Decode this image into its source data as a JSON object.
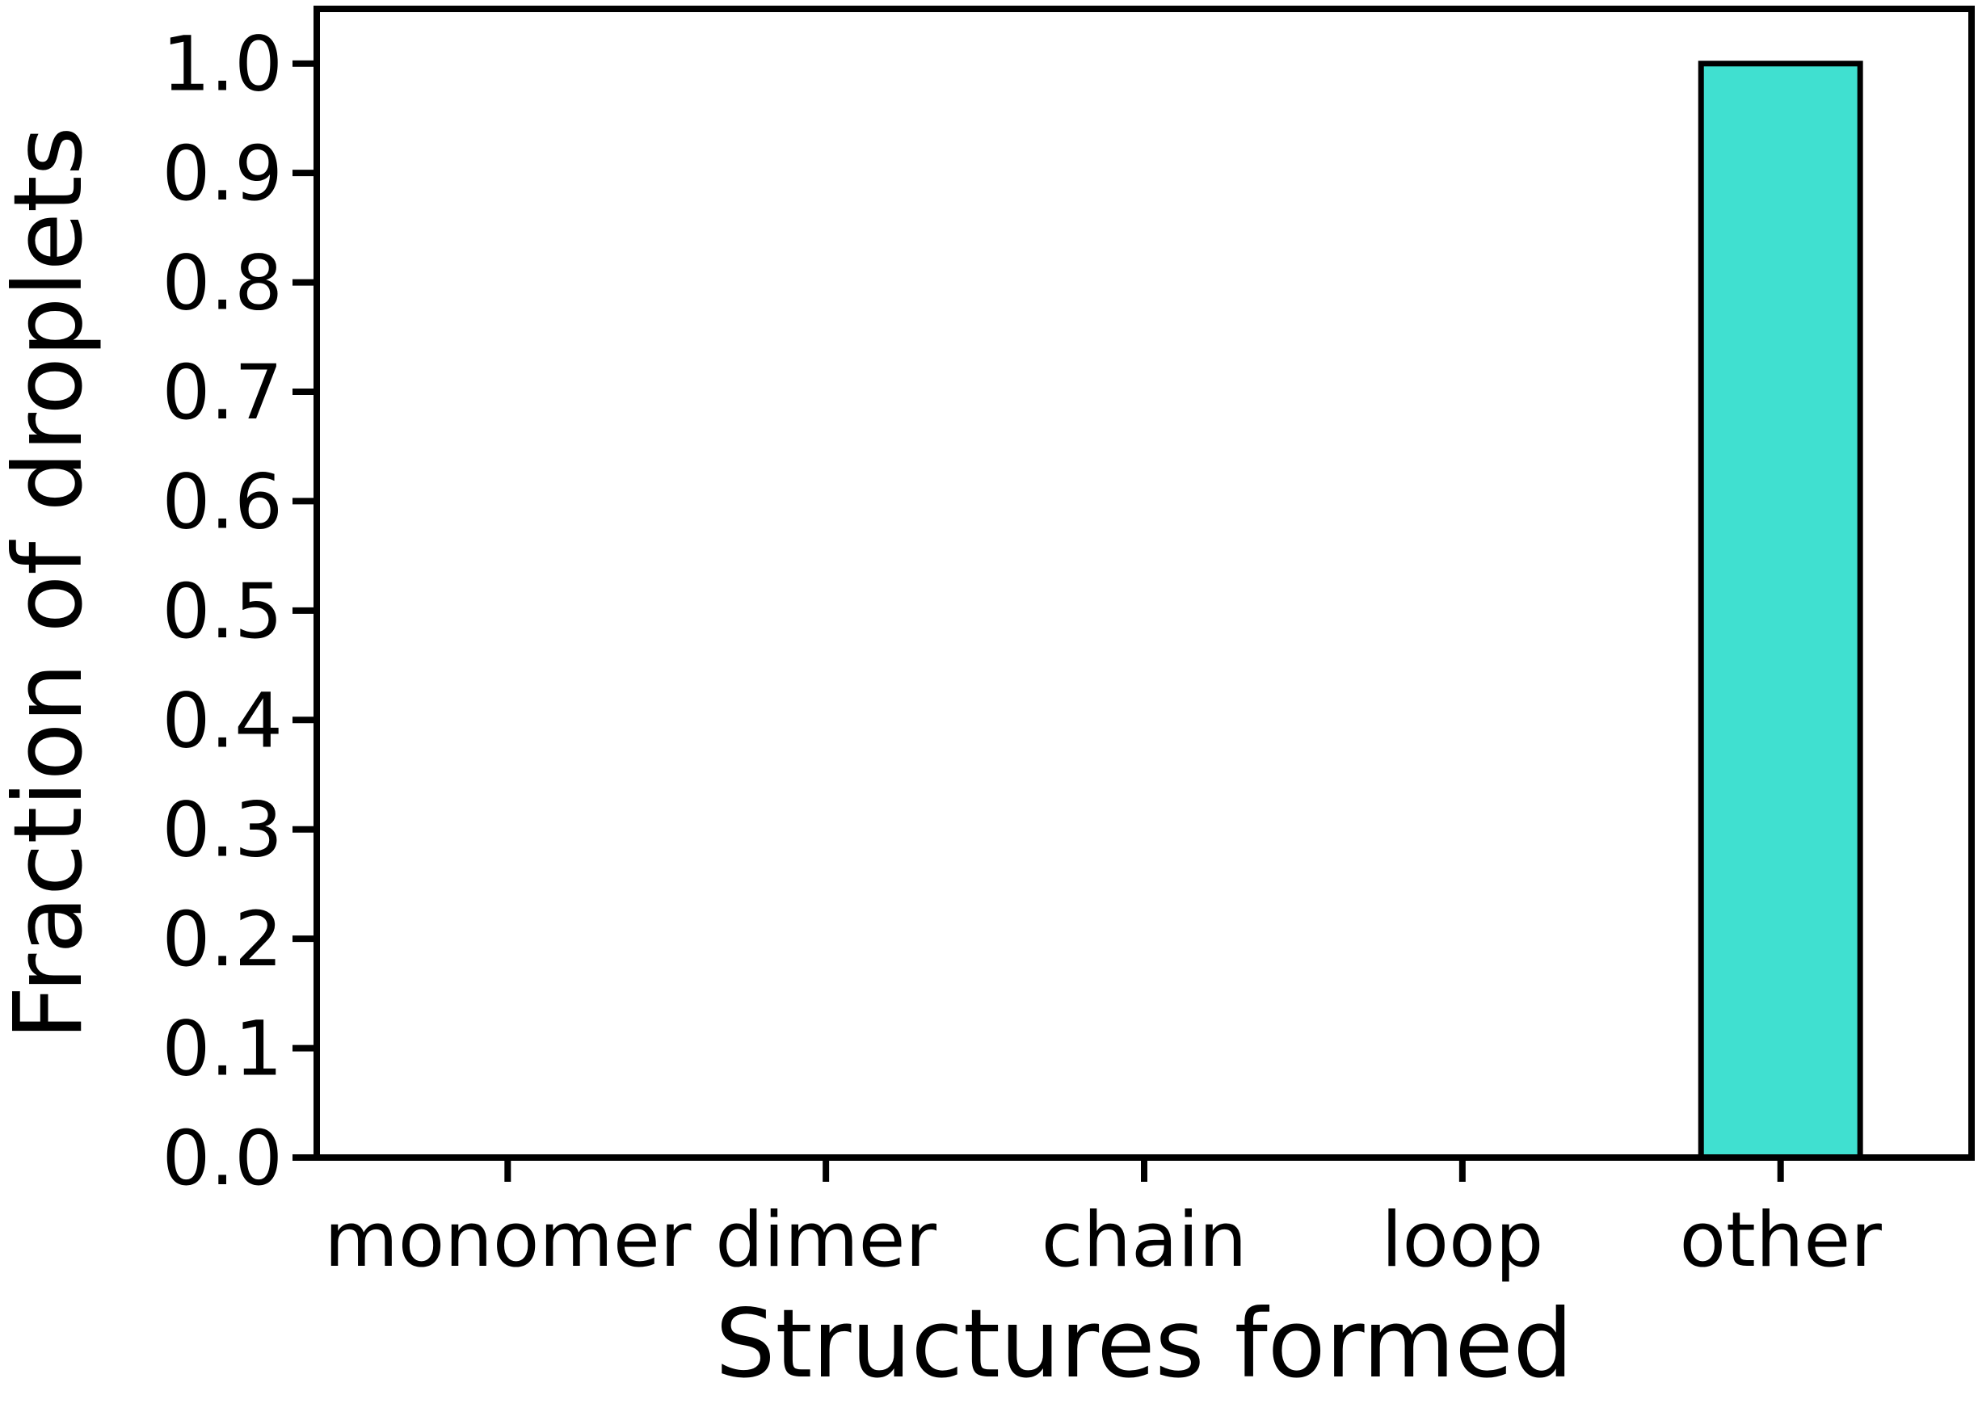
{
  "chart_data": {
    "type": "bar",
    "categories": [
      "monomer",
      "dimer",
      "chain",
      "loop",
      "other"
    ],
    "values": [
      0.0,
      0.0,
      0.0,
      0.0,
      1.0
    ],
    "xlabel": "Structures formed",
    "ylabel": "Fraction of droplets",
    "ylim": [
      0.0,
      1.05
    ],
    "yticks": [
      0.0,
      0.1,
      0.2,
      0.3,
      0.4,
      0.5,
      0.6,
      0.7,
      0.8,
      0.9,
      1.0
    ],
    "ytick_labels": [
      "0.0",
      "0.1",
      "0.2",
      "0.3",
      "0.4",
      "0.5",
      "0.6",
      "0.7",
      "0.8",
      "0.9",
      "1.0"
    ],
    "bar_color": "#40e0d0",
    "edge_color": "#000000",
    "grid": false,
    "legend": "none"
  }
}
